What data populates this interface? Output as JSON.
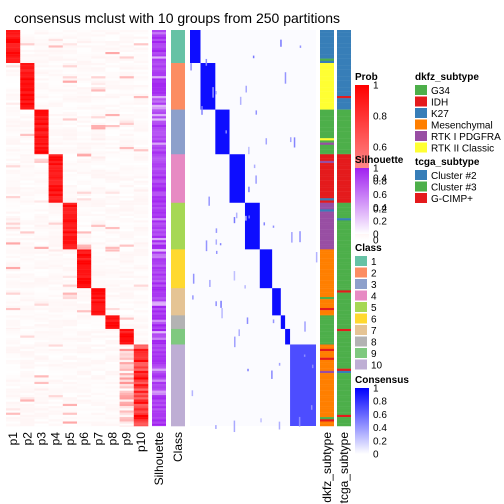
{
  "chart_data": {
    "type": "heatmap",
    "title": "consensus mclust with 10 groups from 250 partitions",
    "prob_columns": [
      "p1",
      "p2",
      "p3",
      "p4",
      "p5",
      "p6",
      "p7",
      "p8",
      "p9",
      "p10"
    ],
    "annotation_columns": [
      "Silhouette",
      "Class"
    ],
    "side_columns": [
      "dkfz_subtype",
      "tcga_subtype"
    ],
    "class_ids": [
      1,
      2,
      3,
      4,
      5,
      6,
      7,
      8,
      9,
      10
    ],
    "class_colors": [
      "#66C2A5",
      "#FC8D62",
      "#8DA0CB",
      "#E78AC3",
      "#A6D854",
      "#FFD92F",
      "#E5C494",
      "#B3B3B3",
      "#7FC97F",
      "#BEAED4"
    ],
    "class_row_fractions": [
      0.085,
      0.12,
      0.115,
      0.125,
      0.12,
      0.1,
      0.07,
      0.035,
      0.04,
      0.21
    ],
    "legends": {
      "prob": {
        "title": "Prob",
        "ticks": [
          "1",
          "0.8",
          "0.6",
          "0.4",
          "0.2",
          "0"
        ],
        "low_color": "#ffffff",
        "high_color": "#ff0000"
      },
      "silhouette": {
        "title": "Silhouette",
        "ticks": [
          "1",
          "0.8",
          "0.6",
          "0.4",
          "0.2",
          "0"
        ],
        "low_color": "#ffffff",
        "high_color": "#a020f0"
      },
      "class": {
        "title": "Class",
        "labels": [
          "1",
          "2",
          "3",
          "4",
          "5",
          "6",
          "7",
          "8",
          "9",
          "10"
        ]
      },
      "consensus": {
        "title": "Consensus",
        "ticks": [
          "1",
          "0.8",
          "0.6",
          "0.4",
          "0.2",
          "0"
        ],
        "low_color": "#ffffff",
        "high_color": "#0000ff"
      },
      "dkfz_subtype": {
        "title": "dkfz_subtype",
        "labels": [
          "G34",
          "IDH",
          "K27",
          "Mesenchymal",
          "RTK I PDGFRA",
          "RTK II Classic"
        ],
        "colors": [
          "#4DAF4A",
          "#E41A1C",
          "#377EB8",
          "#FF7F00",
          "#984EA3",
          "#FFFF33"
        ]
      },
      "tcga_subtype": {
        "title": "tcga_subtype",
        "labels": [
          "Cluster #2",
          "Cluster #3",
          "G-CIMP+"
        ],
        "colors": [
          "#377EB8",
          "#4DAF4A",
          "#E41A1C"
        ]
      }
    }
  }
}
